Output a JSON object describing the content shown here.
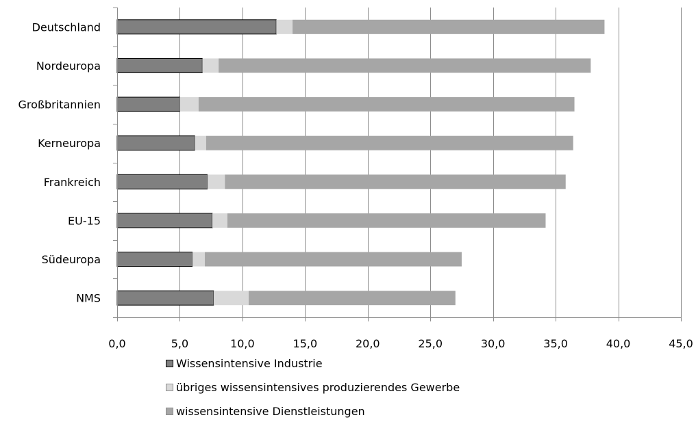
{
  "chart_data": {
    "type": "bar",
    "orientation": "horizontal",
    "stacked": true,
    "categories": [
      "Deutschland",
      "Nordeuropa",
      "Großbritannien",
      "Kerneuropa",
      "Frankreich",
      "EU-15",
      "Südeuropa",
      "NMS"
    ],
    "series": [
      {
        "name": "Wissensintensive Industrie",
        "color": "#808080",
        "values": [
          12.7,
          6.8,
          5.0,
          6.2,
          7.2,
          7.6,
          6.0,
          7.7
        ]
      },
      {
        "name": "übriges wissensintensives produzierendes Gewerbe",
        "color": "#d9d9d9",
        "values": [
          1.3,
          1.3,
          1.5,
          0.9,
          1.4,
          1.2,
          1.0,
          2.8
        ]
      },
      {
        "name": "wissensintensive Dienstleistungen",
        "color": "#a6a6a6",
        "values": [
          24.9,
          29.7,
          30.0,
          29.3,
          27.2,
          25.4,
          20.5,
          16.5
        ]
      }
    ],
    "x_ticks": [
      "0,0",
      "5,0",
      "10,0",
      "15,0",
      "20,0",
      "25,0",
      "30,0",
      "35,0",
      "40,0",
      "45,0"
    ],
    "xlim": [
      0,
      45
    ],
    "grid": true,
    "legend_position": "bottom"
  }
}
